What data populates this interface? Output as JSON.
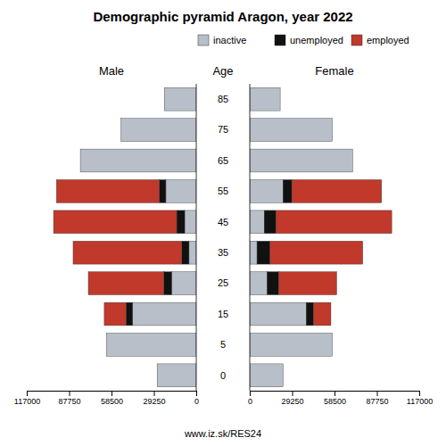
{
  "chart_data": {
    "type": "bar",
    "orientation": "horizontal",
    "stacked": true,
    "grid": false,
    "legend": "upper right",
    "title": "Demographic pyramid Aragon, year 2022",
    "ylabel": "Age",
    "annotations": [
      "www.iz.sk/RES24"
    ],
    "categories": [
      0,
      5,
      15,
      25,
      35,
      45,
      55,
      65,
      75,
      85
    ],
    "xlim": [
      0,
      117000
    ],
    "xticks": [
      0,
      29250,
      58500,
      87750,
      117000
    ],
    "panels": [
      {
        "name": "Male",
        "series": [
          {
            "name": "inactive",
            "color": "#b8bfc8",
            "values": [
              27000,
              62000,
              44000,
              17000,
              5000,
              8000,
              21000,
              80000,
              52000,
              22000
            ]
          },
          {
            "name": "unemployed",
            "color": "#111111",
            "values": [
              0,
              0,
              4500,
              5500,
              5000,
              5500,
              4500,
              0,
              0,
              0
            ]
          },
          {
            "name": "employed",
            "color": "#c0392b",
            "values": [
              0,
              0,
              15000,
              52000,
              75000,
              85000,
              71000,
              0,
              0,
              0
            ]
          }
        ]
      },
      {
        "name": "Female",
        "series": [
          {
            "name": "inactive",
            "color": "#b8bfc8",
            "values": [
              23000,
              57000,
              39000,
              12000,
              5000,
              10000,
              23000,
              71000,
              57000,
              21000
            ]
          },
          {
            "name": "unemployed",
            "color": "#111111",
            "values": [
              0,
              0,
              5000,
              8000,
              9000,
              8000,
              6000,
              0,
              0,
              0
            ]
          },
          {
            "name": "employed",
            "color": "#c0392b",
            "values": [
              0,
              0,
              12000,
              40000,
              64000,
              80000,
              62000,
              0,
              0,
              0
            ]
          }
        ]
      }
    ]
  }
}
